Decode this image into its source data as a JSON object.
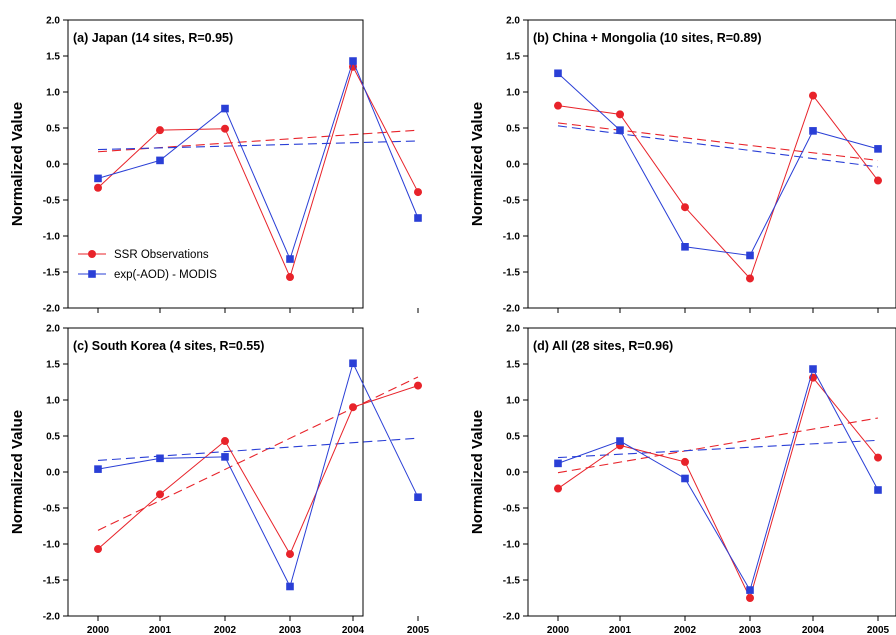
{
  "chart_data": [
    {
      "type": "line",
      "title": "(a) Japan (14 sites, R=0.95)",
      "ylabel": "Normalized Value",
      "x": [
        "2000",
        "2001",
        "2002",
        "2003",
        "2004",
        "2005"
      ],
      "ylim": [
        -2.0,
        2.0
      ],
      "yticks": [
        "2.0",
        "1.5",
        "1.0",
        "0.5",
        "0.0",
        "-0.5",
        "-1.0",
        "-1.5",
        "-2.0"
      ],
      "show_xtick_labels": false,
      "series": [
        {
          "name": "SSR Observations",
          "color": "#e8232a",
          "marker": "circle",
          "values": [
            -0.33,
            0.47,
            0.49,
            -1.57,
            1.35,
            -0.39
          ]
        },
        {
          "name": "exp(-AOD) - MODIS",
          "color": "#2a3fd6",
          "marker": "square",
          "values": [
            -0.2,
            0.05,
            0.77,
            -1.32,
            1.43,
            -0.75
          ]
        }
      ],
      "trendlines": [
        {
          "series": "SSR Observations",
          "start": 0.17,
          "end": 0.47
        },
        {
          "series": "exp(-AOD) - MODIS",
          "start": 0.2,
          "end": 0.32
        }
      ],
      "legend": {
        "position": "bottom-left"
      }
    },
    {
      "type": "line",
      "title": "(b) China + Mongolia (10 sites, R=0.89)",
      "ylabel": "Normalized Value",
      "x": [
        "2000",
        "2001",
        "2002",
        "2003",
        "2004",
        "2005"
      ],
      "ylim": [
        -2.0,
        2.0
      ],
      "yticks": [
        "2.0",
        "1.5",
        "1.0",
        "0.5",
        "0.0",
        "-0.5",
        "-1.0",
        "-1.5",
        "-2.0"
      ],
      "show_xtick_labels": false,
      "series": [
        {
          "name": "SSR Observations",
          "color": "#e8232a",
          "marker": "circle",
          "values": [
            0.81,
            0.69,
            -0.6,
            -1.59,
            0.95,
            -0.23
          ]
        },
        {
          "name": "exp(-AOD) - MODIS",
          "color": "#2a3fd6",
          "marker": "square",
          "values": [
            1.26,
            0.47,
            -1.15,
            -1.27,
            0.46,
            0.21
          ]
        }
      ],
      "trendlines": [
        {
          "series": "SSR Observations",
          "start": 0.57,
          "end": 0.05
        },
        {
          "series": "exp(-AOD) - MODIS",
          "start": 0.53,
          "end": -0.04
        }
      ]
    },
    {
      "type": "line",
      "title": "(c) South Korea (4 sites, R=0.55)",
      "ylabel": "Normalized Value",
      "x": [
        "2000",
        "2001",
        "2002",
        "2003",
        "2004",
        "2005"
      ],
      "ylim": [
        -2.0,
        2.0
      ],
      "yticks": [
        "2.0",
        "1.5",
        "1.0",
        "0.5",
        "0.0",
        "-0.5",
        "-1.0",
        "-1.5",
        "-2.0"
      ],
      "show_xtick_labels": true,
      "series": [
        {
          "name": "SSR Observations",
          "color": "#e8232a",
          "marker": "circle",
          "values": [
            -1.07,
            -0.31,
            0.43,
            -1.14,
            0.9,
            1.2
          ]
        },
        {
          "name": "exp(-AOD) - MODIS",
          "color": "#2a3fd6",
          "marker": "square",
          "values": [
            0.04,
            0.19,
            0.21,
            -1.59,
            1.51,
            -0.35
          ]
        }
      ],
      "trendlines": [
        {
          "series": "SSR Observations",
          "start": -0.81,
          "end": 1.32
        },
        {
          "series": "exp(-AOD) - MODIS",
          "start": 0.16,
          "end": 0.47
        }
      ]
    },
    {
      "type": "line",
      "title": "(d) All (28 sites, R=0.96)",
      "ylabel": "Normalized Value",
      "x": [
        "2000",
        "2001",
        "2002",
        "2003",
        "2004",
        "2005"
      ],
      "ylim": [
        -2.0,
        2.0
      ],
      "yticks": [
        "2.0",
        "1.5",
        "1.0",
        "0.5",
        "0.0",
        "-0.5",
        "-1.0",
        "-1.5",
        "-2.0"
      ],
      "show_xtick_labels": true,
      "series": [
        {
          "name": "SSR Observations",
          "color": "#e8232a",
          "marker": "circle",
          "values": [
            -0.23,
            0.37,
            0.14,
            -1.75,
            1.31,
            0.2
          ]
        },
        {
          "name": "exp(-AOD) - MODIS",
          "color": "#2a3fd6",
          "marker": "square",
          "values": [
            0.12,
            0.43,
            -0.09,
            -1.64,
            1.43,
            -0.25
          ]
        }
      ],
      "trendlines": [
        {
          "series": "SSR Observations",
          "start": -0.01,
          "end": 0.75
        },
        {
          "series": "exp(-AOD) - MODIS",
          "start": 0.2,
          "end": 0.44
        }
      ]
    }
  ]
}
